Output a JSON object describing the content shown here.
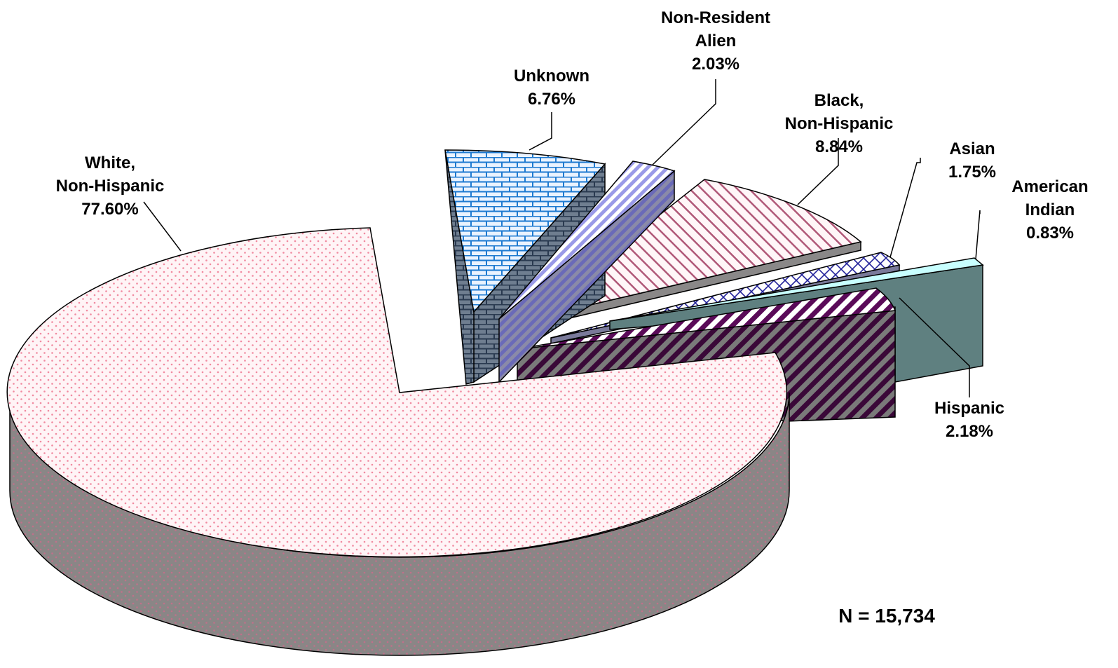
{
  "chart_data": {
    "type": "pie",
    "title": "",
    "style": "3d-exploded",
    "slices": [
      {
        "name": "White, Non-Hispanic",
        "label_lines": [
          "White,",
          "Non-Hispanic"
        ],
        "value": 77.6,
        "value_label": "77.60%"
      },
      {
        "name": "Unknown",
        "label_lines": [
          "Unknown"
        ],
        "value": 6.76,
        "value_label": "6.76%"
      },
      {
        "name": "Non-Resident Alien",
        "label_lines": [
          "Non-Resident",
          "Alien"
        ],
        "value": 2.03,
        "value_label": "2.03%"
      },
      {
        "name": "Black, Non-Hispanic",
        "label_lines": [
          "Black,",
          "Non-Hispanic"
        ],
        "value": 8.84,
        "value_label": "8.84%"
      },
      {
        "name": "Asian",
        "label_lines": [
          "Asian"
        ],
        "value": 1.75,
        "value_label": "1.75%"
      },
      {
        "name": "American Indian",
        "label_lines": [
          "American",
          "Indian"
        ],
        "value": 0.83,
        "value_label": "0.83%"
      },
      {
        "name": "Hispanic",
        "label_lines": [
          "Hispanic"
        ],
        "value": 2.18,
        "value_label": "2.18%"
      }
    ],
    "n_label": "N = 15,734",
    "legend": "none"
  }
}
